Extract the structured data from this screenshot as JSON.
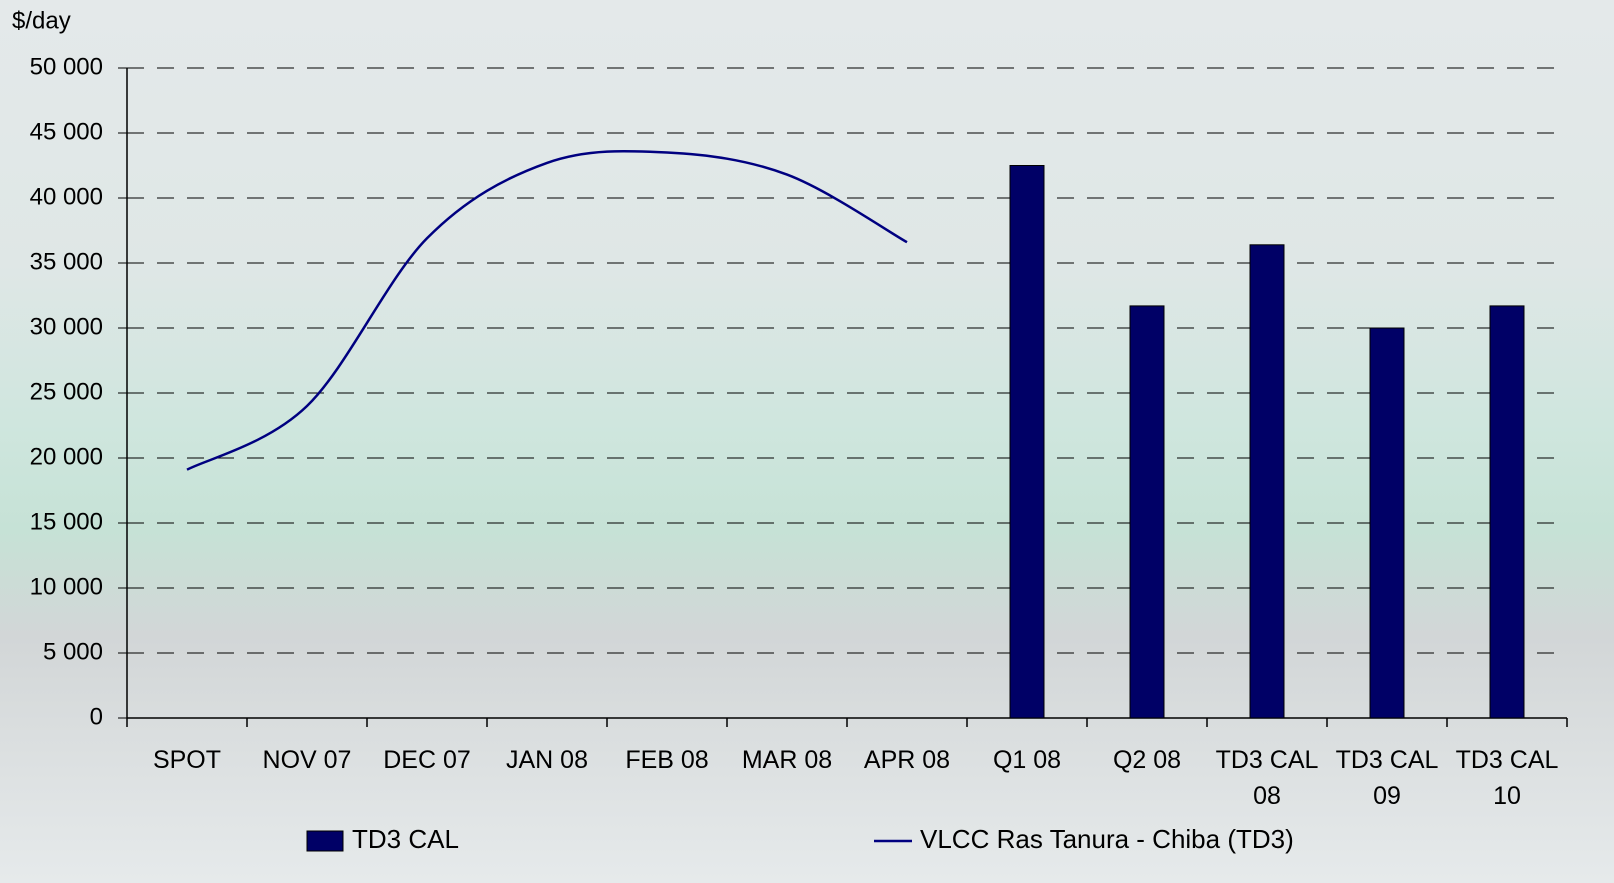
{
  "chart_data": {
    "type": "bar_line",
    "y_label": "$/day",
    "categories": [
      "SPOT",
      "NOV 07",
      "DEC 07",
      "JAN 08",
      "FEB 08",
      "MAR 08",
      "APR 08",
      "Q1 08",
      "Q2 08",
      "TD3 CAL 08",
      "TD3 CAL 09",
      "TD3 CAL 10"
    ],
    "series": [
      {
        "name": "TD3 CAL",
        "type": "bar",
        "color": "#000066",
        "values": [
          null,
          null,
          null,
          null,
          null,
          null,
          null,
          42500,
          31700,
          36400,
          30000,
          31700
        ]
      },
      {
        "name": "VLCC Ras Tanura - Chiba (TD3)",
        "type": "line",
        "color": "#000080",
        "smooth": true,
        "values": [
          19100,
          24000,
          36900,
          42700,
          43500,
          41800,
          36600,
          null,
          null,
          null,
          null,
          null
        ]
      }
    ],
    "ylim": [
      0,
      50000
    ],
    "yticks": [
      0,
      {
        "value": 5000,
        "label": "5 000"
      },
      {
        "value": 10000,
        "label": "10 000"
      },
      {
        "value": 15000,
        "label": "15 000"
      },
      {
        "value": 20000,
        "label": "20 000"
      },
      {
        "value": 25000,
        "label": "25 000"
      },
      {
        "value": 30000,
        "label": "30 000"
      },
      {
        "value": 35000,
        "label": "35 000"
      },
      {
        "value": 40000,
        "label": "40 000"
      },
      {
        "value": 45000,
        "label": "45 000"
      },
      {
        "value": 50000,
        "label": "50 000"
      }
    ],
    "grid": true
  }
}
